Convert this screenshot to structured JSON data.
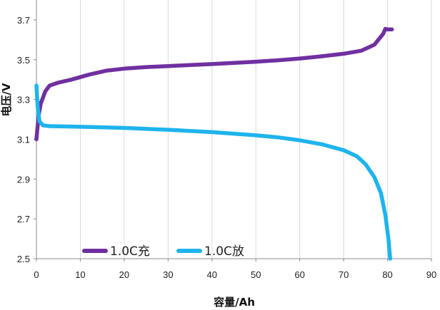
{
  "chart_data": {
    "type": "line",
    "xlabel": "容量/Ah",
    "ylabel": "电压/V",
    "xlim": [
      0,
      90
    ],
    "ylim": [
      2.5,
      3.8
    ],
    "xticks": [
      0,
      10,
      20,
      30,
      40,
      50,
      60,
      70,
      80,
      90
    ],
    "yticks": [
      2.5,
      2.7,
      2.9,
      3.1,
      3.3,
      3.5,
      3.7
    ],
    "ytick_labels": [
      "2.5",
      "2.7",
      "2.9",
      "3.1",
      "3.3",
      "3.5",
      "3.7"
    ],
    "grid": "vertical",
    "legend_placement": "bottom-left",
    "series": [
      {
        "name": "1.0C充",
        "color": "#7030A0",
        "points": [
          [
            0,
            3.1
          ],
          [
            0.5,
            3.22
          ],
          [
            1,
            3.28
          ],
          [
            2,
            3.34
          ],
          [
            3,
            3.37
          ],
          [
            5,
            3.385
          ],
          [
            8,
            3.4
          ],
          [
            12,
            3.425
          ],
          [
            16,
            3.445
          ],
          [
            20,
            3.455
          ],
          [
            25,
            3.463
          ],
          [
            30,
            3.468
          ],
          [
            35,
            3.473
          ],
          [
            40,
            3.478
          ],
          [
            45,
            3.484
          ],
          [
            50,
            3.49
          ],
          [
            55,
            3.497
          ],
          [
            60,
            3.506
          ],
          [
            65,
            3.517
          ],
          [
            70,
            3.53
          ],
          [
            74,
            3.545
          ],
          [
            77,
            3.575
          ],
          [
            79,
            3.63
          ],
          [
            79.5,
            3.655
          ],
          [
            80,
            3.652
          ],
          [
            81,
            3.652
          ]
        ]
      },
      {
        "name": "1.0C放",
        "color": "#1EB4EC",
        "points": [
          [
            0,
            3.37
          ],
          [
            0.3,
            3.26
          ],
          [
            0.7,
            3.19
          ],
          [
            1.5,
            3.17
          ],
          [
            3,
            3.166
          ],
          [
            10,
            3.163
          ],
          [
            20,
            3.157
          ],
          [
            30,
            3.148
          ],
          [
            40,
            3.136
          ],
          [
            50,
            3.12
          ],
          [
            55,
            3.11
          ],
          [
            60,
            3.095
          ],
          [
            65,
            3.075
          ],
          [
            70,
            3.045
          ],
          [
            73,
            3.015
          ],
          [
            75,
            2.975
          ],
          [
            77,
            2.91
          ],
          [
            78.5,
            2.83
          ],
          [
            79.5,
            2.72
          ],
          [
            80.2,
            2.6
          ],
          [
            80.6,
            2.5
          ]
        ]
      }
    ]
  }
}
